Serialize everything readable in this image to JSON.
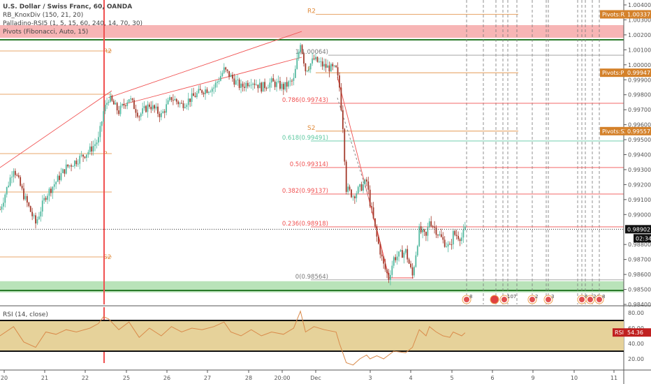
{
  "legend": {
    "symbol": "U.S. Dollar / Swiss Franc, 60, OANDA",
    "ind1": "RB_KnoxDiv (150, 21, 20)",
    "ind2": "Palladino-RSI5 (1, 5, 15, 60, 240, 14, 70, 30)",
    "ind3": "Pivots (Fibonacci, Auto, 15)",
    "rsi": "RSI (14, close)"
  },
  "colors": {
    "up": "#53b9a0",
    "down": "#a33a2b",
    "pivot": "#e08a3a",
    "fib": "#f05050",
    "fib618": "#5cc8a0",
    "tag": "#d4812a",
    "rsi_band": "#e6d29a"
  },
  "chart_data": {
    "type": "candlestick",
    "symbol": "USDCHF",
    "interval": "60",
    "ylim": [
      0.984,
      1.004
    ],
    "yticks": [
      "1.00400",
      "1.00300",
      "1.00200",
      "1.00100",
      "1.00000",
      "0.99900",
      "0.99800",
      "0.99700",
      "0.99600",
      "0.99500",
      "0.99400",
      "0.99300",
      "0.99200",
      "0.99100",
      "0.99000",
      "0.98800",
      "0.98700",
      "0.98600",
      "0.98500",
      "0.98400"
    ],
    "xticks": [
      "20",
      "21",
      "22",
      "25",
      "26",
      "27",
      "28",
      "20:00",
      "Dec",
      "3",
      "4",
      "5",
      "6",
      "9",
      "10",
      "11"
    ],
    "price_path": [
      [
        0,
        0.99034
      ],
      [
        8,
        0.99314
      ],
      [
        14,
        0.99127
      ],
      [
        21,
        0.98941
      ],
      [
        27,
        0.99127
      ],
      [
        33,
        0.9922
      ],
      [
        39,
        0.99314
      ],
      [
        45,
        0.9936
      ],
      [
        53,
        0.9943
      ],
      [
        58,
        0.995
      ],
      [
        61,
        0.99687
      ],
      [
        64,
        0.9978
      ],
      [
        70,
        0.99687
      ],
      [
        76,
        0.9978
      ],
      [
        82,
        0.99663
      ],
      [
        88,
        0.99733
      ],
      [
        95,
        0.99663
      ],
      [
        101,
        0.9978
      ],
      [
        107,
        0.99733
      ],
      [
        113,
        0.9978
      ],
      [
        119,
        0.99827
      ],
      [
        126,
        0.9985
      ],
      [
        132,
        0.99966
      ],
      [
        136,
        0.9992
      ],
      [
        142,
        0.9985
      ],
      [
        148,
        0.99897
      ],
      [
        154,
        0.9985
      ],
      [
        160,
        0.99883
      ],
      [
        167,
        0.9985
      ],
      [
        173,
        0.99897
      ],
      [
        177,
        1.00153
      ],
      [
        180,
        0.99966
      ],
      [
        185,
        1.00036
      ],
      [
        191,
        0.9999
      ],
      [
        198,
        0.99966
      ],
      [
        200,
        0.9985
      ],
      [
        202,
        0.99593
      ],
      [
        204,
        0.99174
      ],
      [
        208,
        0.99127
      ],
      [
        212,
        0.99174
      ],
      [
        216,
        0.9922
      ],
      [
        218,
        0.9908
      ],
      [
        222,
        0.98848
      ],
      [
        226,
        0.98661
      ],
      [
        229,
        0.98577
      ],
      [
        232,
        0.98708
      ],
      [
        239,
        0.98754
      ],
      [
        243,
        0.98591
      ],
      [
        247,
        0.98894
      ],
      [
        251,
        0.98848
      ],
      [
        253,
        0.98964
      ],
      [
        257,
        0.98894
      ],
      [
        261,
        0.98824
      ],
      [
        265,
        0.98778
      ],
      [
        267,
        0.98871
      ],
      [
        272,
        0.98848
      ],
      [
        274,
        0.98902
      ]
    ],
    "last_price": "0.98902",
    "countdown": "02:34",
    "pivots_right": [
      {
        "label": "R2",
        "value": 1.00337,
        "tag": "Pivots:R2",
        "text": "1.00337"
      },
      {
        "label": "P",
        "value": 0.99947,
        "tag": "Pivots:P",
        "text": "0.99947"
      },
      {
        "label": "S2",
        "value": 0.99557,
        "tag": "Pivots:S2",
        "text": "0.99557"
      }
    ],
    "pivots_left": [
      {
        "label": "R2",
        "value": 1.0009
      },
      {
        "label": "P",
        "value": 0.99405
      },
      {
        "label": "S2",
        "value": 0.98715
      }
    ],
    "fib_levels": [
      {
        "label": "1(1.00064)",
        "value": 1.00064
      },
      {
        "label": "0.786(0.99743)",
        "value": 0.99743
      },
      {
        "label": "0.618(0.99491)",
        "value": 0.99491
      },
      {
        "label": "0.5(0.99314)",
        "value": 0.99314
      },
      {
        "label": "0.382(0.99137)",
        "value": 0.99137
      },
      {
        "label": "0.236(0.98918)",
        "value": 0.98918
      },
      {
        "label": "0(0.98564)",
        "value": 0.98564
      }
    ],
    "zones": [
      {
        "from": 1.0018,
        "to": 1.00265,
        "color": "#f5a3a3"
      },
      {
        "from": 0.9848,
        "to": 0.98555,
        "color": "#a8dca8"
      }
    ],
    "events": [
      "8",
      "107",
      "2",
      "3",
      "4",
      "24",
      "8"
    ],
    "rsi": {
      "ylim": [
        0,
        100
      ],
      "yticks": [
        "80.00",
        "60.00",
        "40.00",
        "20.00"
      ],
      "band": [
        30,
        70
      ],
      "value": "54.36",
      "label": "RSI",
      "path": [
        [
          0,
          50
        ],
        [
          8,
          62
        ],
        [
          14,
          42
        ],
        [
          21,
          35
        ],
        [
          27,
          55
        ],
        [
          33,
          52
        ],
        [
          39,
          58
        ],
        [
          45,
          55
        ],
        [
          53,
          60
        ],
        [
          58,
          66
        ],
        [
          61,
          75
        ],
        [
          64,
          72
        ],
        [
          70,
          58
        ],
        [
          76,
          68
        ],
        [
          82,
          48
        ],
        [
          88,
          60
        ],
        [
          95,
          50
        ],
        [
          101,
          62
        ],
        [
          107,
          55
        ],
        [
          113,
          60
        ],
        [
          119,
          58
        ],
        [
          126,
          62
        ],
        [
          132,
          68
        ],
        [
          136,
          55
        ],
        [
          142,
          50
        ],
        [
          148,
          58
        ],
        [
          154,
          50
        ],
        [
          160,
          55
        ],
        [
          167,
          52
        ],
        [
          173,
          60
        ],
        [
          177,
          82
        ],
        [
          180,
          55
        ],
        [
          185,
          62
        ],
        [
          191,
          58
        ],
        [
          198,
          55
        ],
        [
          200,
          40
        ],
        [
          204,
          15
        ],
        [
          208,
          12
        ],
        [
          212,
          20
        ],
        [
          216,
          25
        ],
        [
          218,
          20
        ],
        [
          222,
          24
        ],
        [
          226,
          20
        ],
        [
          229,
          25
        ],
        [
          232,
          30
        ],
        [
          239,
          28
        ],
        [
          243,
          35
        ],
        [
          247,
          58
        ],
        [
          251,
          50
        ],
        [
          253,
          62
        ],
        [
          257,
          55
        ],
        [
          261,
          50
        ],
        [
          265,
          48
        ],
        [
          267,
          55
        ],
        [
          272,
          50
        ],
        [
          274,
          54
        ]
      ]
    }
  }
}
